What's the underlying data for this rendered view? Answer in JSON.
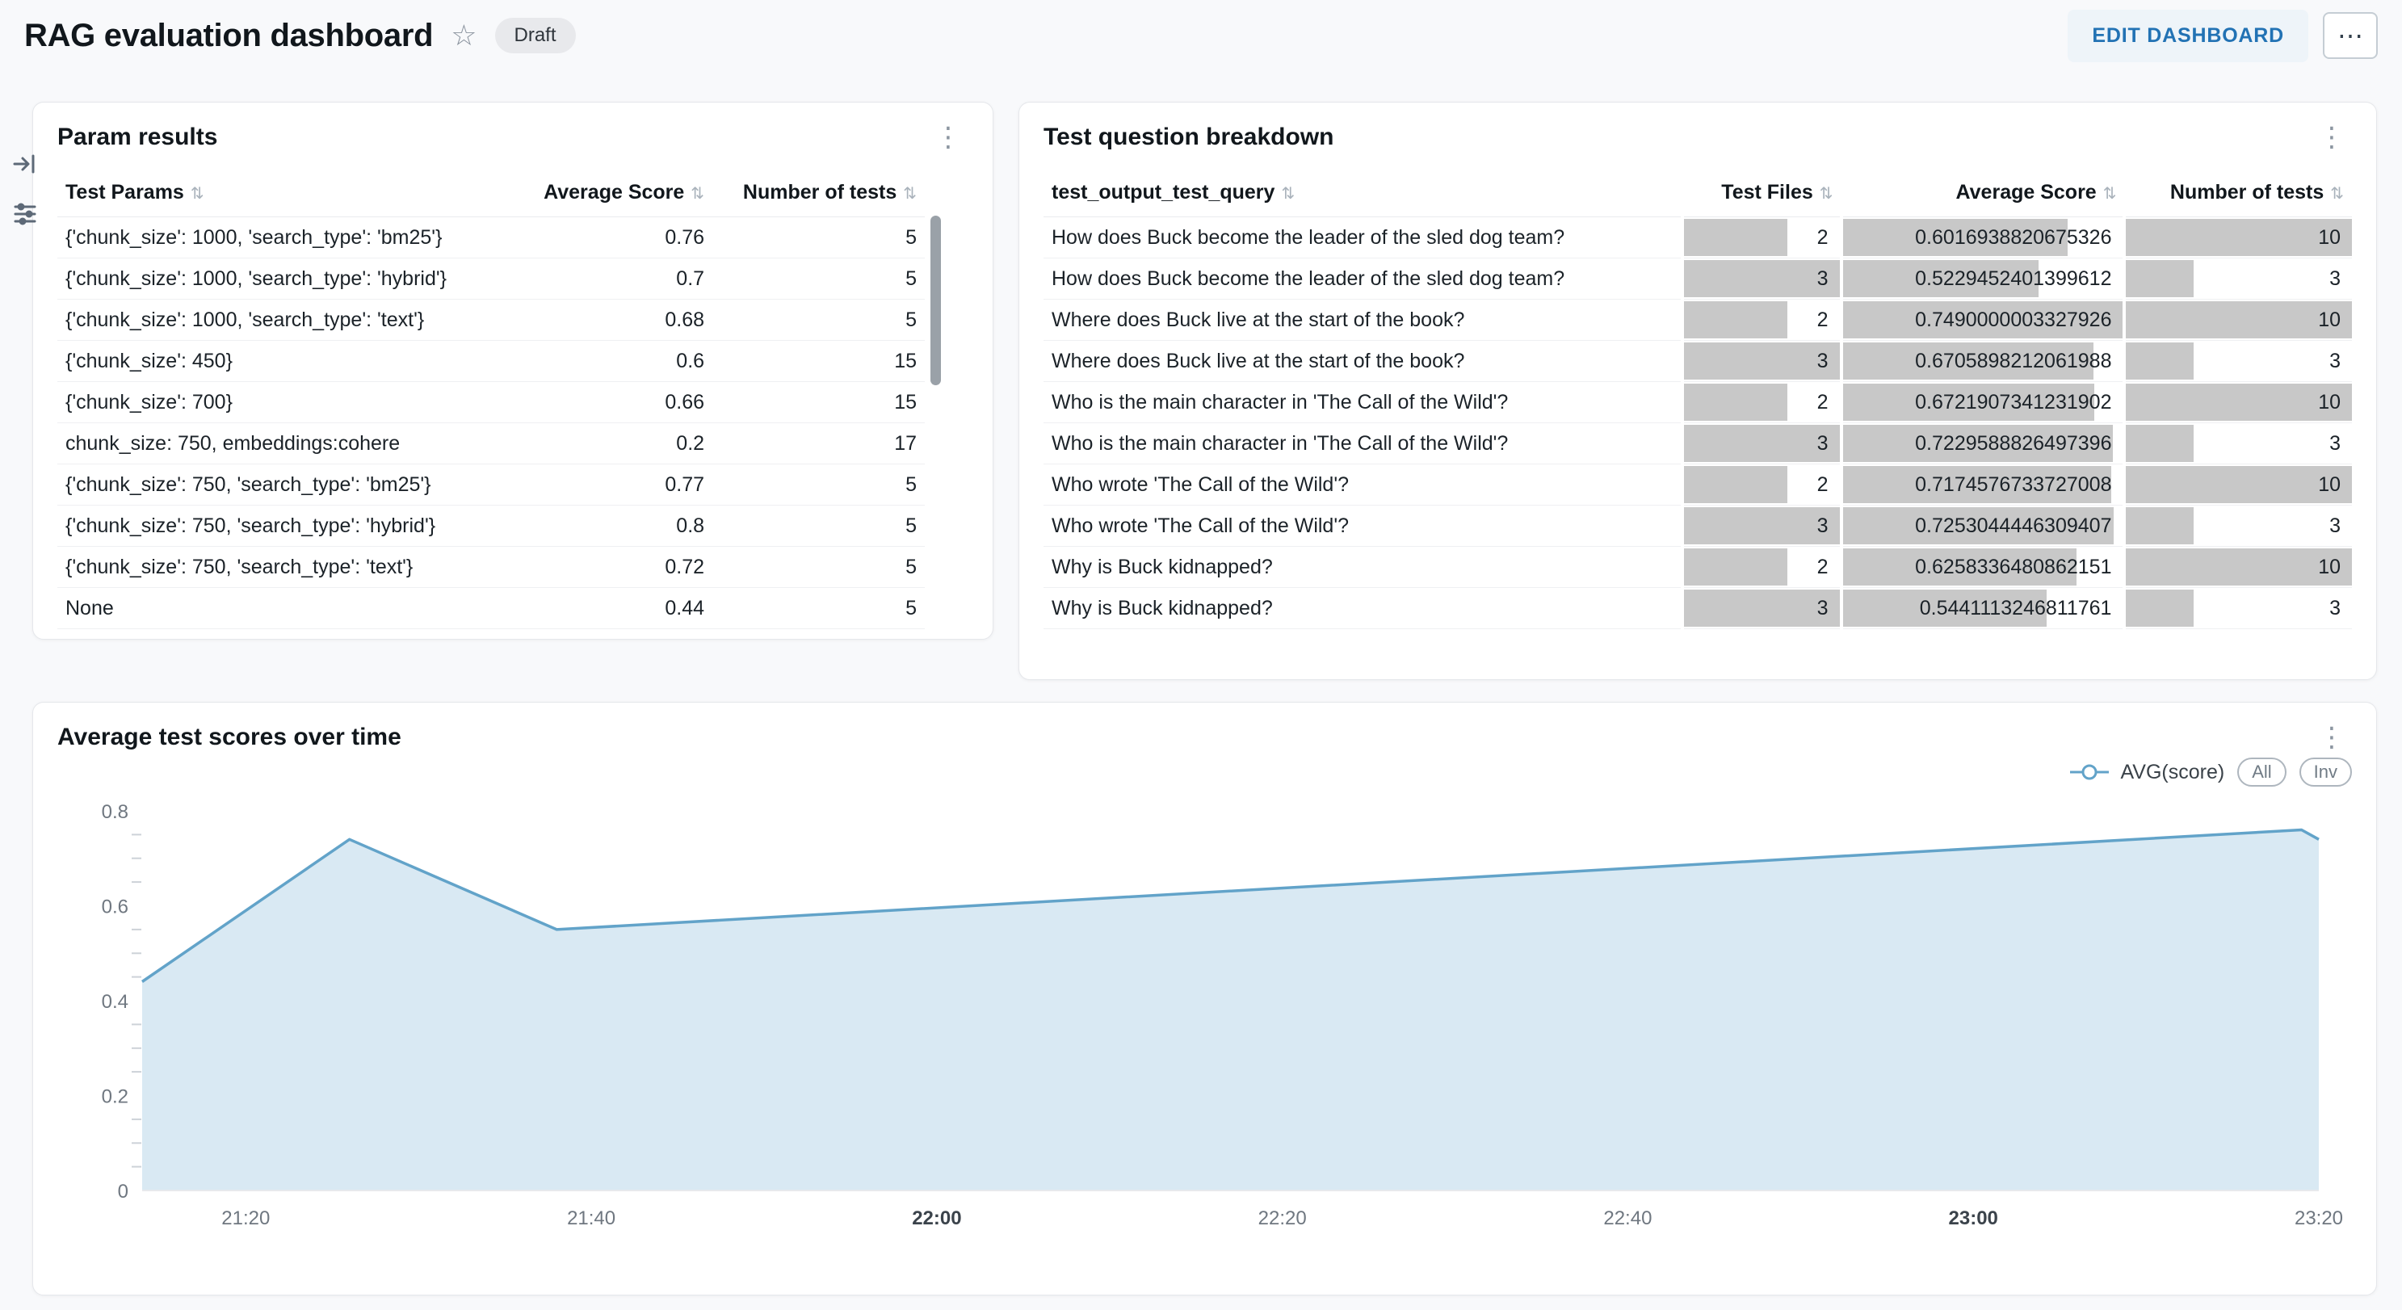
{
  "header": {
    "title": "RAG evaluation dashboard",
    "status_badge": "Draft",
    "edit_button": "EDIT DASHBOARD"
  },
  "icons": {
    "star": "☆",
    "kebab": "⋮",
    "ellipsis": "⋯",
    "sort": "⇅",
    "side_rail": [
      "expand-panel-icon",
      "filters-icon"
    ]
  },
  "param_results": {
    "title": "Param results",
    "columns": [
      "Test Params",
      "Average Score",
      "Number of tests"
    ],
    "rows": [
      [
        "{'chunk_size': 1000, 'search_type': 'bm25'}",
        "0.76",
        "5"
      ],
      [
        "{'chunk_size': 1000, 'search_type': 'hybrid'}",
        "0.7",
        "5"
      ],
      [
        "{'chunk_size': 1000, 'search_type': 'text'}",
        "0.68",
        "5"
      ],
      [
        "{'chunk_size': 450}",
        "0.6",
        "15"
      ],
      [
        "{'chunk_size': 700}",
        "0.66",
        "15"
      ],
      [
        "chunk_size: 750, embeddings:cohere",
        "0.2",
        "17"
      ],
      [
        "{'chunk_size': 750, 'search_type': 'bm25'}",
        "0.77",
        "5"
      ],
      [
        "{'chunk_size': 750, 'search_type': 'hybrid'}",
        "0.8",
        "5"
      ],
      [
        "{'chunk_size': 750, 'search_type': 'text'}",
        "0.72",
        "5"
      ],
      [
        "None",
        "0.44",
        "5"
      ]
    ]
  },
  "question_breakdown": {
    "title": "Test question breakdown",
    "columns": [
      "test_output_test_query",
      "Test Files",
      "Average Score",
      "Number of tests"
    ],
    "bar_color": "#c8c8c8",
    "max": {
      "test_files": 3,
      "avg_score": 0.7490000003327926,
      "num_tests": 10
    },
    "rows": [
      {
        "query": "How does Buck become the leader of the sled dog team?",
        "test_files": 2,
        "avg_score": "0.6016938820675326",
        "num_tests": 10
      },
      {
        "query": "How does Buck become the leader of the sled dog team?",
        "test_files": 3,
        "avg_score": "0.5229452401399612",
        "num_tests": 3
      },
      {
        "query": "Where does Buck live at the start of the book?",
        "test_files": 2,
        "avg_score": "0.7490000003327926",
        "num_tests": 10
      },
      {
        "query": "Where does Buck live at the start of the book?",
        "test_files": 3,
        "avg_score": "0.6705898212061988",
        "num_tests": 3
      },
      {
        "query": "Who is the main character in 'The Call of the Wild'?",
        "test_files": 2,
        "avg_score": "0.6721907341231902",
        "num_tests": 10
      },
      {
        "query": "Who is the main character in 'The Call of the Wild'?",
        "test_files": 3,
        "avg_score": "0.7229588826497396",
        "num_tests": 3
      },
      {
        "query": "Who wrote 'The Call of the Wild'?",
        "test_files": 2,
        "avg_score": "0.7174576733727008",
        "num_tests": 10
      },
      {
        "query": "Who wrote 'The Call of the Wild'?",
        "test_files": 3,
        "avg_score": "0.7253044446309407",
        "num_tests": 3
      },
      {
        "query": "Why is Buck kidnapped?",
        "test_files": 2,
        "avg_score": "0.6258336480862151",
        "num_tests": 10
      },
      {
        "query": "Why is Buck kidnapped?",
        "test_files": 3,
        "avg_score": "0.5441113246811761",
        "num_tests": 3
      }
    ]
  },
  "chart_data": {
    "type": "area",
    "title": "Average test scores over time",
    "legend": {
      "position": "top-right",
      "entries": [
        "AVG(score)"
      ],
      "buttons": [
        "All",
        "Inv"
      ]
    },
    "series": [
      {
        "name": "AVG(score)",
        "line_color": "#62a3c9",
        "fill_color": "#d9e9f3",
        "points": [
          {
            "x": "21:14",
            "y": 0.44
          },
          {
            "x": "21:26",
            "y": 0.74
          },
          {
            "x": "21:38",
            "y": 0.55
          },
          {
            "x": "23:19",
            "y": 0.76
          },
          {
            "x": "23:20",
            "y": 0.74
          }
        ]
      }
    ],
    "ylim": [
      0,
      0.8
    ],
    "yticks": [
      0,
      0.2,
      0.4,
      0.6,
      0.8
    ],
    "ytick_labels": [
      "0",
      "0.2",
      "0.4",
      "0.6",
      "0.8"
    ],
    "y_minor_step": 0.05,
    "xticks": [
      {
        "label": "21:20",
        "bold": false
      },
      {
        "label": "21:40",
        "bold": false
      },
      {
        "label": "22:00",
        "bold": true
      },
      {
        "label": "22:20",
        "bold": false
      },
      {
        "label": "22:40",
        "bold": false
      },
      {
        "label": "23:00",
        "bold": true
      },
      {
        "label": "23:20",
        "bold": false
      }
    ],
    "grid": false
  }
}
